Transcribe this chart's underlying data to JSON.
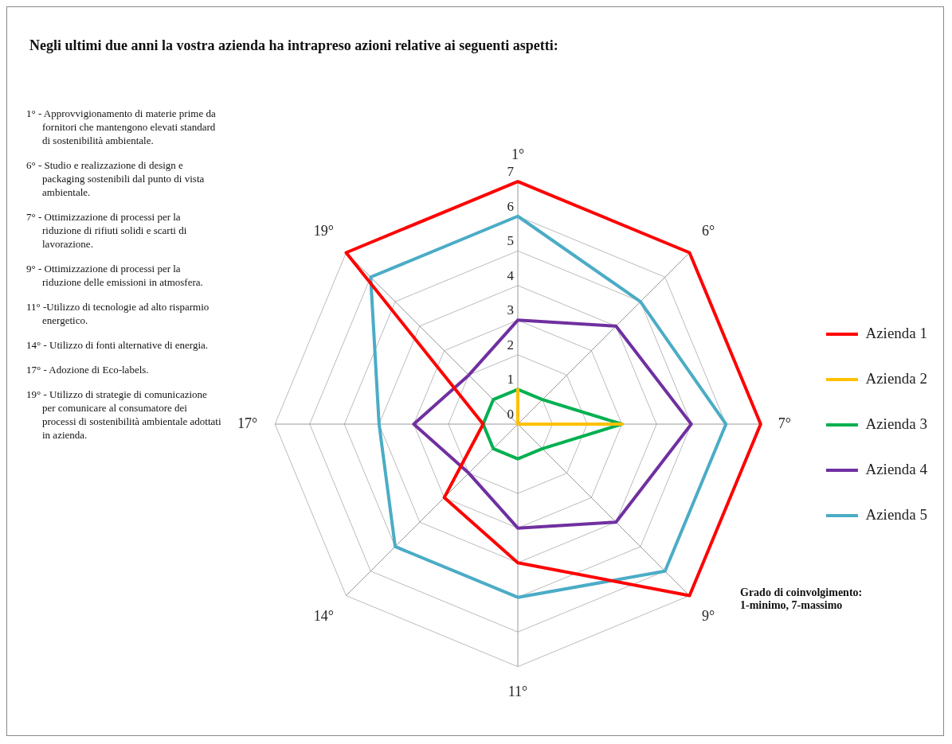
{
  "chart_data": {
    "type": "radar",
    "title": "Negli ultimi due anni la vostra azienda ha intrapreso azioni relative ai seguenti aspetti:",
    "categories": [
      "1°",
      "6°",
      "7°",
      "9°",
      "11°",
      "14°",
      "17°",
      "19°"
    ],
    "series": [
      {
        "name": "Azienda 1",
        "color": "#ff0000",
        "values": [
          7,
          7,
          7,
          7,
          4,
          3,
          1,
          7
        ]
      },
      {
        "name": "Azienda 2",
        "color": "#ffc000",
        "values": [
          1,
          0,
          3,
          0,
          0,
          0,
          0,
          0
        ]
      },
      {
        "name": "Azienda 3",
        "color": "#00b050",
        "values": [
          1,
          1,
          3,
          1,
          1,
          1,
          1,
          1
        ]
      },
      {
        "name": "Azienda 4",
        "color": "#7030a0",
        "values": [
          3,
          4,
          5,
          4,
          3,
          2,
          3,
          2
        ]
      },
      {
        "name": "Azienda 5",
        "color": "#4bacc6",
        "values": [
          6,
          5,
          6,
          6,
          5,
          5,
          4,
          6
        ]
      }
    ],
    "ylim": [
      0,
      7
    ],
    "yticks": [
      0,
      1,
      2,
      3,
      4,
      5,
      6,
      7
    ],
    "grid": true,
    "legend": "right",
    "marker": "none",
    "line_style": "solid",
    "annotations": [
      "1° - Approvvigionamento di materie prime da fornitori che mantengono elevati standard di sostenibilità ambientale.",
      "6° - Studio e realizzazione di design e packaging sostenibili dal punto di vista ambientale.",
      "7° - Ottimizzazione di processi per la riduzione di rifiuti solidi e scarti di lavorazione.",
      "9° - Ottimizzazione di processi per la riduzione delle emissioni  in atmosfera.",
      "11° -Utilizzo di tecnologie ad alto risparmio energetico.",
      "14° - Utilizzo di fonti alternative di energia.",
      "17° - Adozione di Eco-labels.",
      "19° - Utilizzo di strategie di comunicazione per comunicare al consumatore dei processi di sostenibilità ambientale adottati in azienda.",
      "Grado di coinvolgimento:\n1-minimo, 7-massimo"
    ]
  }
}
